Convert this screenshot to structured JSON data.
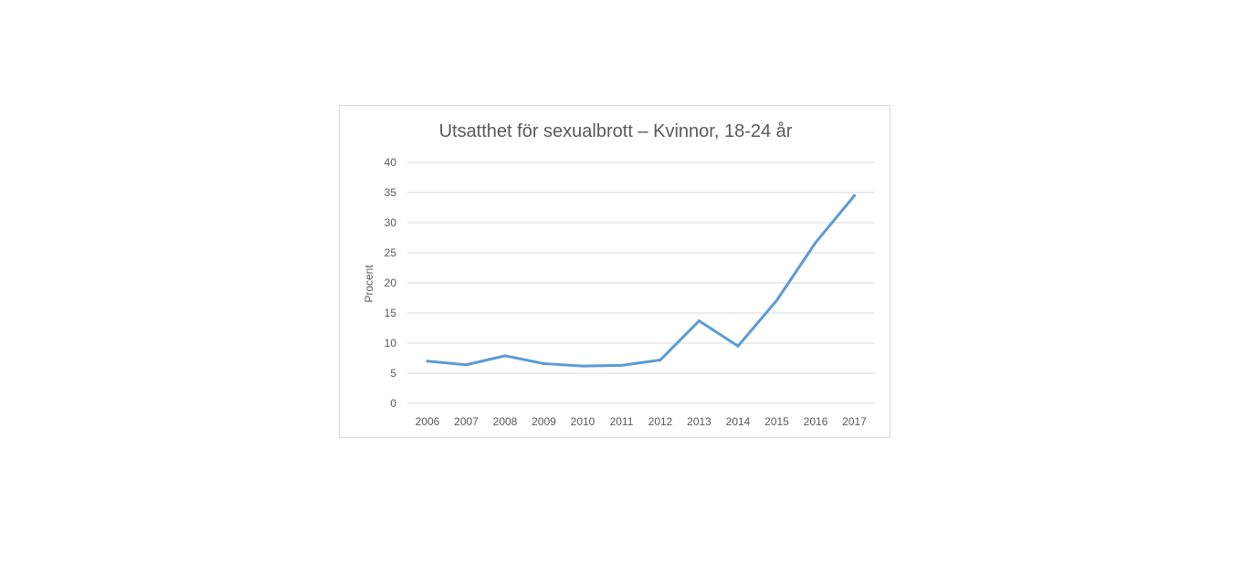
{
  "chart_data": {
    "type": "line",
    "title": "Utsatthet för sexualbrott – Kvinnor, 18-24 år",
    "xlabel": "",
    "ylabel": "Procent",
    "ylim": [
      0,
      40
    ],
    "yticks": [
      "0",
      "5",
      "10",
      "15",
      "20",
      "25",
      "30",
      "35",
      "40"
    ],
    "categories": [
      "2006",
      "2007",
      "2008",
      "2009",
      "2010",
      "2011",
      "2012",
      "2013",
      "2014",
      "2015",
      "2016",
      "2017"
    ],
    "series": [
      {
        "name": "Kvinnor, 18-24 år",
        "color": "#5b9bd5",
        "values": [
          7.0,
          6.4,
          7.9,
          6.6,
          6.2,
          6.3,
          7.2,
          13.7,
          9.5,
          17.1,
          26.7,
          34.5
        ]
      }
    ],
    "grid": true,
    "legend": "none"
  }
}
